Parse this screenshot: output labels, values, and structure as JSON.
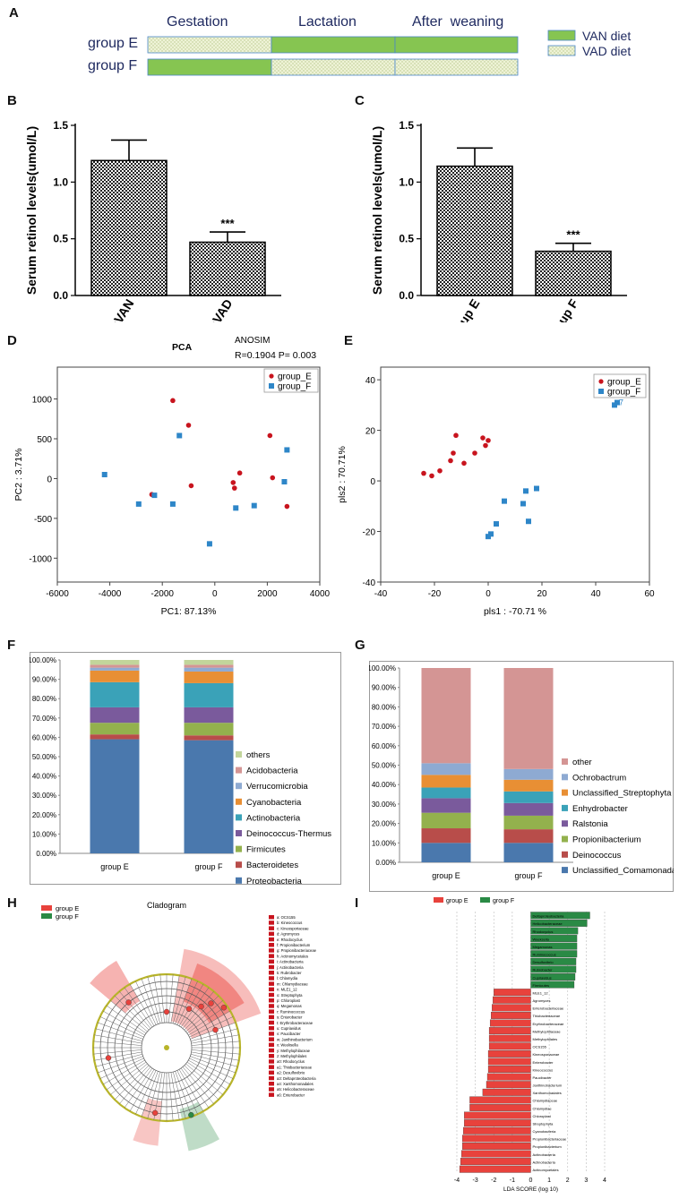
{
  "panels": {
    "A": "A",
    "B": "B",
    "C": "C",
    "D": "D",
    "E": "E",
    "F": "F",
    "G": "G",
    "H": "H",
    "I": "I"
  },
  "panelA": {
    "phases": [
      "Gestation",
      "Lactation",
      "After  weaning"
    ],
    "groups": [
      {
        "name": "group E",
        "segments": [
          "VAD",
          "VAN",
          "VAN"
        ]
      },
      {
        "name": "group F",
        "segments": [
          "VAN",
          "VAD",
          "VAD"
        ]
      }
    ],
    "legend": [
      {
        "label": "VAN diet",
        "key": "VAN"
      },
      {
        "label": "VAD diet",
        "key": "VAD"
      }
    ],
    "colors": {
      "VAN": "#86c551",
      "VAD": "#eef3d6",
      "border": "#4a86c8"
    }
  },
  "chart_data": [
    {
      "id": "B",
      "type": "bar",
      "categories": [
        "mVAN",
        "mVAD"
      ],
      "values": [
        1.19,
        0.47
      ],
      "errors": [
        0.18,
        0.09
      ],
      "significance": [
        "",
        "***"
      ],
      "ylabel": "Serum retinol levels(umol/L)",
      "ylim": [
        0,
        1.5
      ],
      "yticks": [
        "0.0",
        "0.5",
        "1.0",
        "1.5"
      ]
    },
    {
      "id": "C",
      "type": "bar",
      "categories": [
        "group E",
        "group F"
      ],
      "values": [
        1.14,
        0.39
      ],
      "errors": [
        0.16,
        0.07
      ],
      "significance": [
        "",
        "***"
      ],
      "ylabel": "Serum retinol levels(umol/L)",
      "ylim": [
        0,
        1.5
      ],
      "yticks": [
        "0.0",
        "0.5",
        "1.0",
        "1.5"
      ]
    },
    {
      "id": "D",
      "type": "scatter",
      "title": "PCA",
      "annotation_title": "ANOSIM",
      "annotation": "R=0.1904  P= 0.003",
      "xlabel": "PC1: 87.13%",
      "ylabel": "PC2 :  3.71%",
      "xlim": [
        -6000,
        4000
      ],
      "ylim": [
        -1300,
        1400
      ],
      "xticks": [
        -6000,
        -4000,
        -2000,
        0,
        2000,
        4000
      ],
      "yticks": [
        -1000,
        -500,
        0,
        500,
        1000
      ],
      "series": [
        {
          "name": "group_E",
          "marker": "circle",
          "color": "#c8141e",
          "points": [
            [
              -1600,
              980
            ],
            [
              -1000,
              670
            ],
            [
              -900,
              -90
            ],
            [
              -2400,
              -200
            ],
            [
              700,
              -50
            ],
            [
              750,
              -120
            ],
            [
              950,
              70
            ],
            [
              2100,
              540
            ],
            [
              2200,
              10
            ],
            [
              2750,
              -350
            ]
          ]
        },
        {
          "name": "group_F",
          "marker": "square",
          "color": "#2e86c8",
          "points": [
            [
              -4200,
              50
            ],
            [
              -2900,
              -320
            ],
            [
              -2300,
              -210
            ],
            [
              -1600,
              -320
            ],
            [
              -1350,
              540
            ],
            [
              -200,
              -820
            ],
            [
              800,
              -370
            ],
            [
              1500,
              -340
            ],
            [
              2650,
              -40
            ],
            [
              2750,
              360
            ]
          ]
        }
      ]
    },
    {
      "id": "E",
      "type": "scatter",
      "xlabel": "pls1 : -70.71 %",
      "ylabel": "pls2 : 70.71%",
      "xlim": [
        -40,
        60
      ],
      "ylim": [
        -40,
        45
      ],
      "xticks": [
        -40,
        -20,
        0,
        20,
        40,
        60
      ],
      "yticks": [
        -40,
        -20,
        0,
        20,
        40
      ],
      "label_near_point": "7",
      "series": [
        {
          "name": "group_E",
          "marker": "circle",
          "color": "#c8141e",
          "points": [
            [
              -24,
              3
            ],
            [
              -21,
              2
            ],
            [
              -18,
              4
            ],
            [
              -14,
              8
            ],
            [
              -13,
              11
            ],
            [
              -12,
              18
            ],
            [
              -9,
              7
            ],
            [
              -5,
              11
            ],
            [
              -2,
              17
            ],
            [
              0,
              16
            ],
            [
              -1,
              14
            ]
          ]
        },
        {
          "name": "group_F",
          "marker": "square",
          "color": "#2e86c8",
          "points": [
            [
              0,
              -22
            ],
            [
              1,
              -21
            ],
            [
              3,
              -17
            ],
            [
              6,
              -8
            ],
            [
              13,
              -9
            ],
            [
              14,
              -4
            ],
            [
              15,
              -16
            ],
            [
              18,
              -3
            ],
            [
              47,
              30
            ],
            [
              48,
              31
            ]
          ]
        }
      ]
    },
    {
      "id": "F",
      "type": "bar",
      "stacked": true,
      "categories": [
        "group E",
        "group F"
      ],
      "yticks": [
        "0.00%",
        "10.00%",
        "20.00%",
        "30.00%",
        "40.00%",
        "50.00%",
        "60.00%",
        "70.00%",
        "80.00%",
        "90.00%",
        "100.00%"
      ],
      "series": [
        {
          "name": "Proteobacteria",
          "color": "#4a78ad",
          "values": [
            59,
            58.5
          ]
        },
        {
          "name": "Bacteroidetes",
          "color": "#b84d4a",
          "values": [
            2.5,
            2.5
          ]
        },
        {
          "name": "Firmicutes",
          "color": "#93b14d",
          "values": [
            6,
            6.5
          ]
        },
        {
          "name": "Deinococcus-Thermus",
          "color": "#7a5a9c",
          "values": [
            8,
            8
          ]
        },
        {
          "name": "Actinobacteria",
          "color": "#3aa2b8",
          "values": [
            13,
            12.5
          ]
        },
        {
          "name": "Cyanobacteria",
          "color": "#e88f34",
          "values": [
            6,
            6
          ]
        },
        {
          "name": "Verrucomicrobia",
          "color": "#8eaad2",
          "values": [
            1.5,
            2
          ]
        },
        {
          "name": "Acidobacteria",
          "color": "#d49594",
          "values": [
            1.5,
            1.5
          ]
        },
        {
          "name": "others",
          "color": "#c2d59b",
          "values": [
            2.5,
            2.5
          ]
        }
      ]
    },
    {
      "id": "G",
      "type": "bar",
      "stacked": true,
      "categories": [
        "group E",
        "group F"
      ],
      "yticks": [
        "0.00%",
        "10.00%",
        "20.00%",
        "30.00%",
        "40.00%",
        "50.00%",
        "60.00%",
        "70.00%",
        "80.00%",
        "90.00%",
        "100.00%"
      ],
      "series": [
        {
          "name": "Unclassified_Comamonadaceae",
          "color": "#4a78ad",
          "values": [
            10,
            10
          ]
        },
        {
          "name": "Deinococcus",
          "color": "#b84d4a",
          "values": [
            7.5,
            7
          ]
        },
        {
          "name": "Propionibacterium",
          "color": "#93b14d",
          "values": [
            8,
            7
          ]
        },
        {
          "name": "Ralstonia",
          "color": "#7a5a9c",
          "values": [
            7.5,
            6.5
          ]
        },
        {
          "name": "Enhydrobacter",
          "color": "#3aa2b8",
          "values": [
            5.5,
            6
          ]
        },
        {
          "name": "Unclassified_Streptophyta",
          "color": "#e88f34",
          "values": [
            6.5,
            6
          ]
        },
        {
          "name": "Ochrobactrum",
          "color": "#8eaad2",
          "values": [
            6,
            5.5
          ]
        },
        {
          "name": "other",
          "color": "#d49594",
          "values": [
            49,
            52
          ]
        }
      ]
    },
    {
      "id": "I",
      "type": "bar",
      "orientation": "horizontal",
      "xlabel": "LDA SCORE (log 10)",
      "xlim": [
        -4,
        4
      ],
      "xticks": [
        -4,
        -3,
        -2,
        -1,
        0,
        1,
        2,
        3,
        4
      ],
      "legend": [
        {
          "name": "group E",
          "color": "#e8423c"
        },
        {
          "name": "group F",
          "color": "#2a8a45"
        }
      ],
      "labels": [
        "Deltaproteobacteria",
        "Helicobacteraceae",
        "Rhodocyclus",
        "Weeksella",
        "Megamonas",
        "Ruminococcus",
        "Desulfovibrio",
        "Rubrobacter",
        "Cupriavidus",
        "Firmicutes",
        "MLE1_12",
        "Agromyces",
        "Enterobacteriaceae",
        "Thiobacteriaceae",
        "Erythrobacteraceae",
        "Methylophilaceae",
        "Methylophilales",
        "OCS155",
        "Kineosporiaceae",
        "Enterobacter",
        "Kineococcus",
        "Paucibacter",
        "Janthinobacterium",
        "Xanthomonadales",
        "Chlamydiaceae",
        "Chlamydiae",
        "Chloroplast",
        "Streptophyta",
        "Cyanobacteria",
        "Propionibacteriaceae",
        "Propionibacterium",
        "Actinobacteria",
        "Actinobacteria ",
        "Actinomycetales"
      ],
      "values": [
        3.2,
        3.05,
        2.55,
        2.5,
        2.5,
        2.5,
        2.45,
        2.45,
        2.4,
        2.35,
        -2.0,
        -2.05,
        -2.1,
        -2.15,
        -2.2,
        -2.25,
        -2.25,
        -2.25,
        -2.3,
        -2.3,
        -2.3,
        -2.35,
        -2.4,
        -2.6,
        -3.3,
        -3.3,
        -3.6,
        -3.6,
        -3.65,
        -3.7,
        -3.7,
        -3.75,
        -3.8,
        -3.85
      ]
    }
  ],
  "panelH": {
    "title": "Cladogram",
    "legend": [
      {
        "name": "group E",
        "color": "#e8423c"
      },
      {
        "name": "group F",
        "color": "#2a8a45"
      }
    ],
    "key_color": "#c8141e",
    "key": [
      "a: OCS155",
      "b: Kineococcus",
      "c: Kineosporiaceae",
      "d: Agromyces",
      "e: Rhodocyclus",
      "f: Propionibacterium",
      "g: Propionibacteriaceae",
      "h: Actinomycetales",
      "i: Actinobacteria",
      "j: Actinobacteria",
      "k: Rubrobacter",
      "l: Chlamydia",
      "m: Chlamydiaceae",
      "n: MLE1_12",
      "o: Streptophyta",
      "p: Chloroplast",
      "q: Megamonas",
      "r: Ruminococcus",
      "s: Enterobacter",
      "t: Erythrobacteraceae",
      "u: Cupriavidus",
      "v: Paucibacter",
      "w: Janthinobacterium",
      "x: Weeksella",
      "y: Methylophilaceae",
      "z: Methylophilales",
      "a0: Rhodocyclus",
      "a1: Thiobacteriaceae",
      "a2: Desulfovibrio",
      "a3: Deltaproteobacteria",
      "a4: Xanthomonadales",
      "a5: Helicobacteraceae",
      "a6: Enterobacter"
    ]
  }
}
